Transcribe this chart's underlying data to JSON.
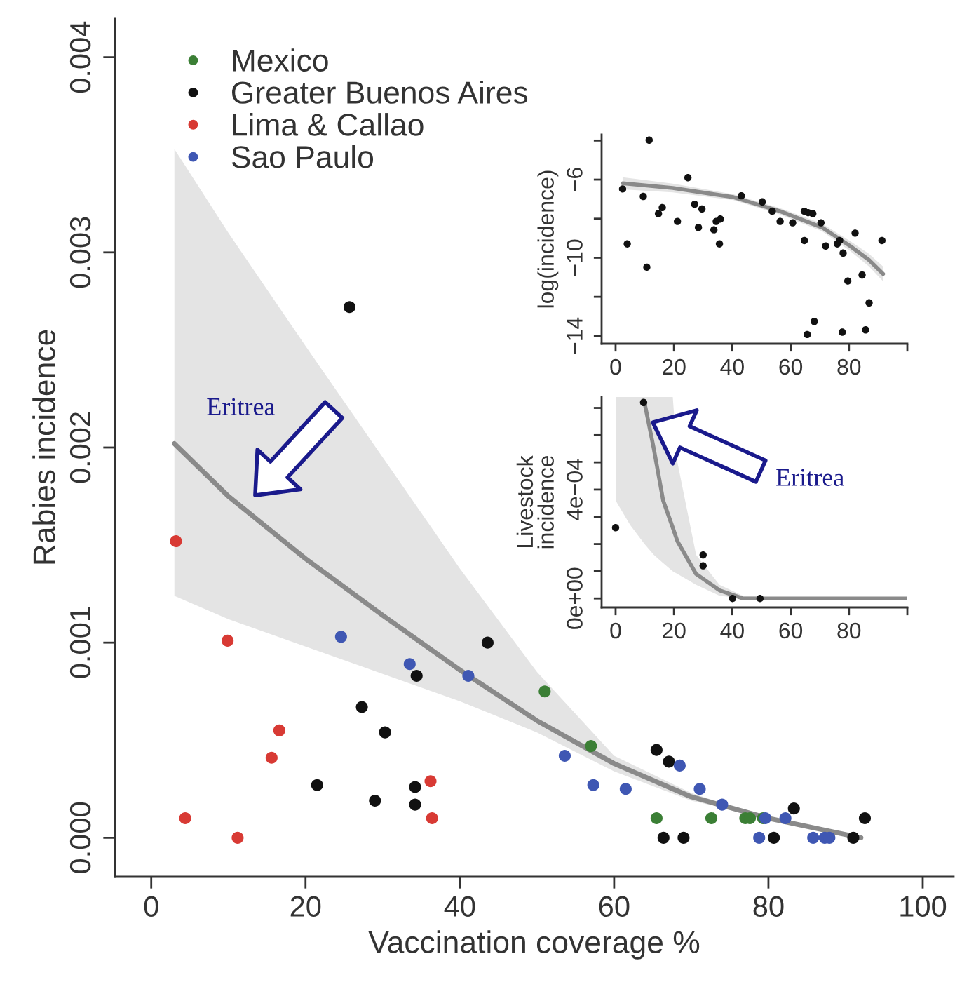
{
  "chart_data": [
    {
      "type": "scatter",
      "xlabel": "Vaccination coverage %",
      "ylabel": "Rabies incidence",
      "xlim": [
        -4.7,
        104
      ],
      "ylim": [
        -0.0002,
        0.0042
      ],
      "xticks": [
        0,
        20,
        40,
        60,
        80,
        100
      ],
      "yticks": [
        {
          "value": 0,
          "label": "0.000"
        },
        {
          "value": 0.001,
          "label": "0.001"
        },
        {
          "value": 0.002,
          "label": "0.002"
        },
        {
          "value": 0.003,
          "label": "0.003"
        },
        {
          "value": 0.004,
          "label": "0.004"
        }
      ],
      "legend": "top left",
      "annotations": [
        "Eritrea"
      ],
      "series": [
        {
          "name": "Mexico",
          "color": "#3b7f35",
          "marker": "circle",
          "x": [
            51.0,
            57.0,
            65.5,
            72.6,
            77.0,
            77.6,
            79.3
          ],
          "values": [
            0.00075,
            0.00047,
            0.0001,
            0.0001,
            0.0001,
            0.0001,
            0.0001
          ]
        },
        {
          "name": "Greater Buenos Aires",
          "color": "#111111",
          "marker": "circle",
          "x": [
            25.7,
            43.6,
            34.4,
            27.3,
            30.3,
            21.5,
            34.2,
            29.0,
            34.2,
            65.5,
            67.1,
            66.4,
            69.0,
            80.7,
            83.3,
            91.0,
            92.5
          ],
          "values": [
            0.00272,
            0.001,
            0.00083,
            0.00067,
            0.00054,
            0.00027,
            0.00026,
            0.00019,
            0.00017,
            0.00045,
            0.00039,
            0.0,
            0.0,
            0.0,
            0.00015,
            0.0,
            0.0001
          ]
        },
        {
          "name": "Lima & Callao",
          "color": "#d83a34",
          "marker": "circle",
          "x": [
            3.2,
            9.9,
            16.6,
            15.6,
            36.2,
            4.4,
            11.2,
            36.4
          ],
          "values": [
            0.00152,
            0.00101,
            0.00055,
            0.00041,
            0.00029,
            0.0001,
            0.0,
            0.0001
          ]
        },
        {
          "name": "Sao Paulo",
          "color": "#3f57b3",
          "marker": "circle",
          "x": [
            24.6,
            33.5,
            41.1,
            53.6,
            57.3,
            61.5,
            68.5,
            71.1,
            74.0,
            78.8,
            79.6,
            82.2,
            85.8,
            87.3,
            87.9
          ],
          "values": [
            0.00103,
            0.00089,
            0.00083,
            0.00042,
            0.00027,
            0.00025,
            0.00037,
            0.00025,
            0.00017,
            0.0,
            0.0001,
            0.0001,
            0.0,
            0.0,
            0.0
          ]
        },
        {
          "type": "line",
          "color": "#8a8a8a",
          "x": [
            3,
            10,
            20,
            30,
            40,
            50,
            60,
            70,
            80,
            92
          ],
          "values": [
            0.00202,
            0.00175,
            0.00143,
            0.00114,
            0.00086,
            0.0006,
            0.00038,
            0.00021,
            0.0001,
            0.0
          ],
          "lower": [
            0.00124,
            0.00112,
            0.00098,
            0.00084,
            0.0007,
            0.00054,
            0.00034,
            0.00019,
            0.0001,
            0.0
          ],
          "upper": [
            0.00353,
            0.0031,
            0.00252,
            0.00195,
            0.00138,
            0.00085,
            0.00042,
            0.00023,
            0.0001,
            0.0
          ]
        }
      ]
    },
    {
      "type": "scatter",
      "ylabel": "log(incidence)",
      "xlim": [
        -4.8,
        100
      ],
      "ylim": [
        -14.4,
        -3.7
      ],
      "xticks": [
        0,
        20,
        40,
        60,
        80,
        {
          "value": 100,
          "label": null
        }
      ],
      "yticks": [
        {
          "value": -4,
          "label": null
        },
        {
          "value": -6,
          "label": "−6"
        },
        {
          "value": -8,
          "label": null
        },
        {
          "value": -10,
          "label": "−10"
        },
        {
          "value": -12,
          "label": null
        },
        {
          "value": -14,
          "label": "−14"
        }
      ],
      "series": [
        {
          "color": "#111111",
          "marker": "circle",
          "x": [
            2.4,
            4.0,
            11.5,
            9.5,
            10.7,
            14.7,
            16.0,
            21.2,
            24.8,
            27.1,
            28.4,
            29.6,
            33.7,
            34.5,
            35.9,
            35.6,
            43.1,
            50.3,
            53.7,
            56.4,
            60.7,
            64.7,
            66.0,
            67.6,
            64.7,
            65.7,
            68.1,
            70.4,
            72.0,
            76.0,
            76.8,
            78.0,
            77.7,
            79.6,
            82.1,
            84.5,
            85.7,
            86.9,
            91.3
          ],
          "values": [
            -6.48,
            -9.29,
            -3.98,
            -6.86,
            -10.48,
            -7.74,
            -7.43,
            -8.14,
            -5.9,
            -7.26,
            -8.45,
            -7.5,
            -8.57,
            -8.14,
            -8.02,
            -9.29,
            -6.83,
            -7.14,
            -7.62,
            -8.14,
            -8.21,
            -7.62,
            -7.69,
            -7.74,
            -9.12,
            -13.93,
            -13.26,
            -8.21,
            -9.4,
            -9.29,
            -9.12,
            -9.76,
            -13.81,
            -11.19,
            -8.74,
            -10.88,
            -13.69,
            -12.31,
            -9.12
          ]
        },
        {
          "type": "line",
          "color": "#8a8a8a",
          "x": [
            2.4,
            19.6,
            40.4,
            56.4,
            70.8,
            80.4,
            86.9,
            91.7
          ],
          "values": [
            -6.19,
            -6.43,
            -6.9,
            -7.62,
            -8.45,
            -9.4,
            -10.12,
            -10.83
          ],
          "lower": [
            -6.5,
            -6.65,
            -7.05,
            -7.78,
            -8.65,
            -9.65,
            -10.45,
            -11.2
          ],
          "upper": [
            -5.88,
            -6.2,
            -6.75,
            -7.46,
            -8.25,
            -9.15,
            -9.8,
            -10.45
          ]
        }
      ]
    },
    {
      "type": "scatter",
      "ylabel": "Livestock\nincidence",
      "xlim": [
        -4.8,
        100
      ],
      "ylim": [
        -3.3e-05,
        0.00074
      ],
      "xticks": [
        0,
        20,
        40,
        60,
        80,
        {
          "value": 100,
          "label": null
        }
      ],
      "yticks": [
        {
          "value": 0,
          "label": "0e+00"
        },
        {
          "value": 0.0001,
          "label": null
        },
        {
          "value": 0.0002,
          "label": null
        },
        {
          "value": 0.0003,
          "label": null
        },
        {
          "value": 0.0004,
          "label": "4e−04"
        },
        {
          "value": 0.0005,
          "label": null
        },
        {
          "value": 0.0006,
          "label": null
        },
        {
          "value": 0.0007,
          "label": null
        }
      ],
      "annotations": [
        "Eritrea"
      ],
      "series": [
        {
          "color": "#111111",
          "marker": "circle",
          "x": [
            0,
            9.6,
            30,
            30,
            40.1,
            49.5
          ],
          "values": [
            0.00026,
            0.00072,
            0.00016,
            0.00012,
            0.0,
            0.0
          ]
        },
        {
          "type": "line",
          "color": "#8a8a8a",
          "x": [
            0,
            5,
            9.9,
            13.1,
            16.3,
            19.6,
            21.2,
            27.6,
            35.6,
            43.6,
            60,
            80,
            100
          ],
          "values": [
            null,
            null,
            0.00072,
            0.00055,
            0.00036,
            0.00026,
            0.00021,
            9e-05,
            3e-05,
            0.0,
            0,
            0,
            0
          ],
          "lower": [
            0.00036,
            0.00027,
            0.0002,
            0.00016,
            0.00013,
            0.0001,
            9e-05,
            5e-05,
            1e-05,
            0.0,
            0,
            0,
            0
          ],
          "upper": [
            0.00074,
            0.00074,
            0.00074,
            0.00074,
            0.00074,
            0.00074,
            0.0005,
            0.00016,
            5e-05,
            1e-05,
            0,
            0,
            0
          ]
        }
      ]
    }
  ]
}
